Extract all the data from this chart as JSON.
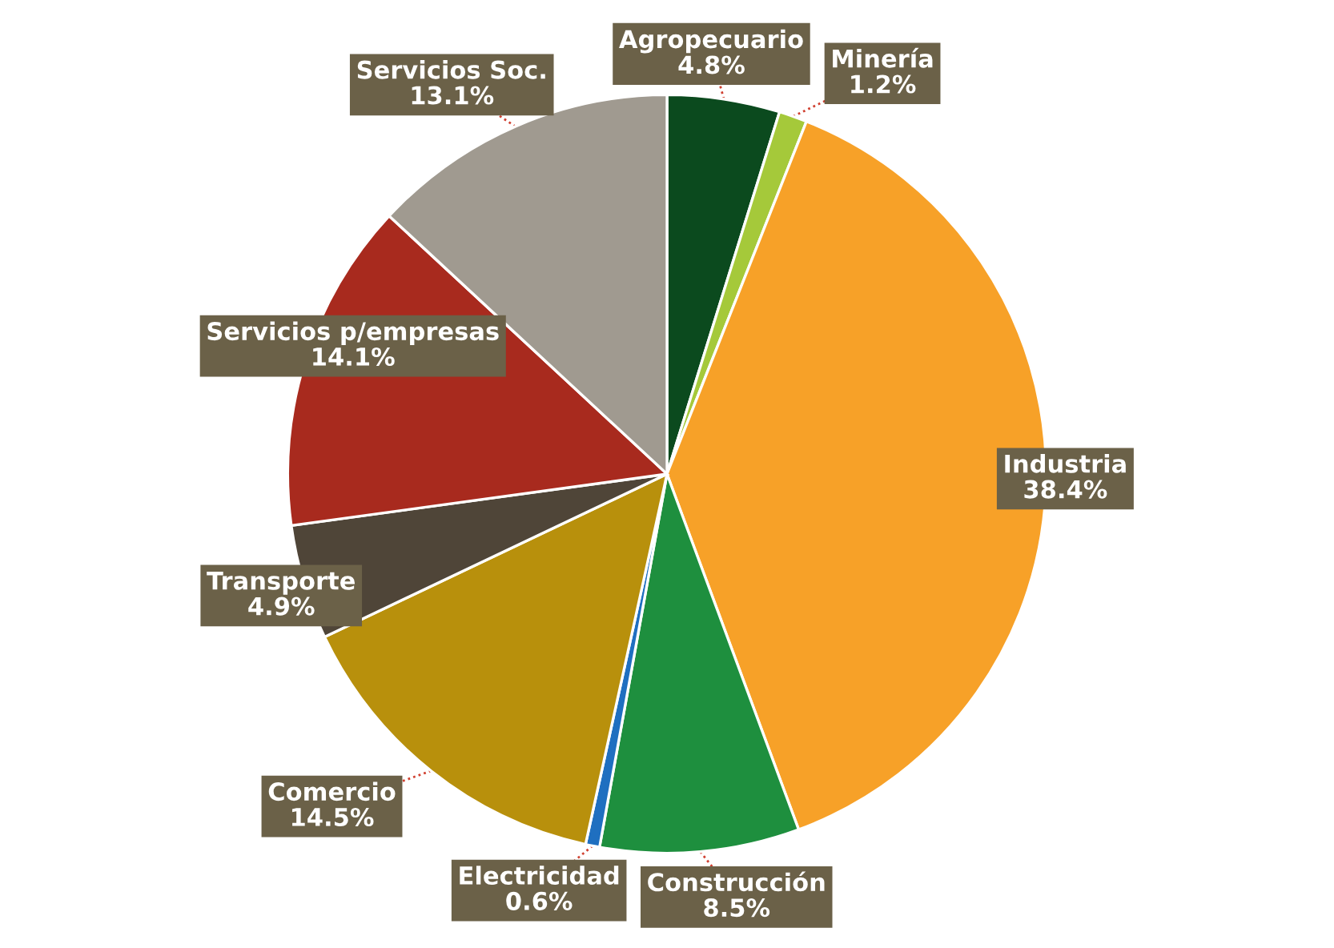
{
  "chart_data": {
    "type": "pie",
    "categories": [
      "Agropecuario",
      "Minería",
      "Industria",
      "Construcción",
      "Electricidad",
      "Comercio",
      "Transporte",
      "Servicios p/empresas",
      "Servicios Soc."
    ],
    "values": [
      4.8,
      1.2,
      38.4,
      8.5,
      0.6,
      14.5,
      4.9,
      14.1,
      13.1
    ],
    "value_labels": [
      "4.8%",
      "1.2%",
      "38.4%",
      "8.5%",
      "0.6%",
      "14.5%",
      "4.9%",
      "14.1%",
      "13.1%"
    ],
    "colors": [
      "#0b4a1e",
      "#a5c93a",
      "#f7a128",
      "#1e8f3e",
      "#1f6fc0",
      "#b8900c",
      "#4f4538",
      "#a82a1e",
      "#a09a90"
    ]
  }
}
